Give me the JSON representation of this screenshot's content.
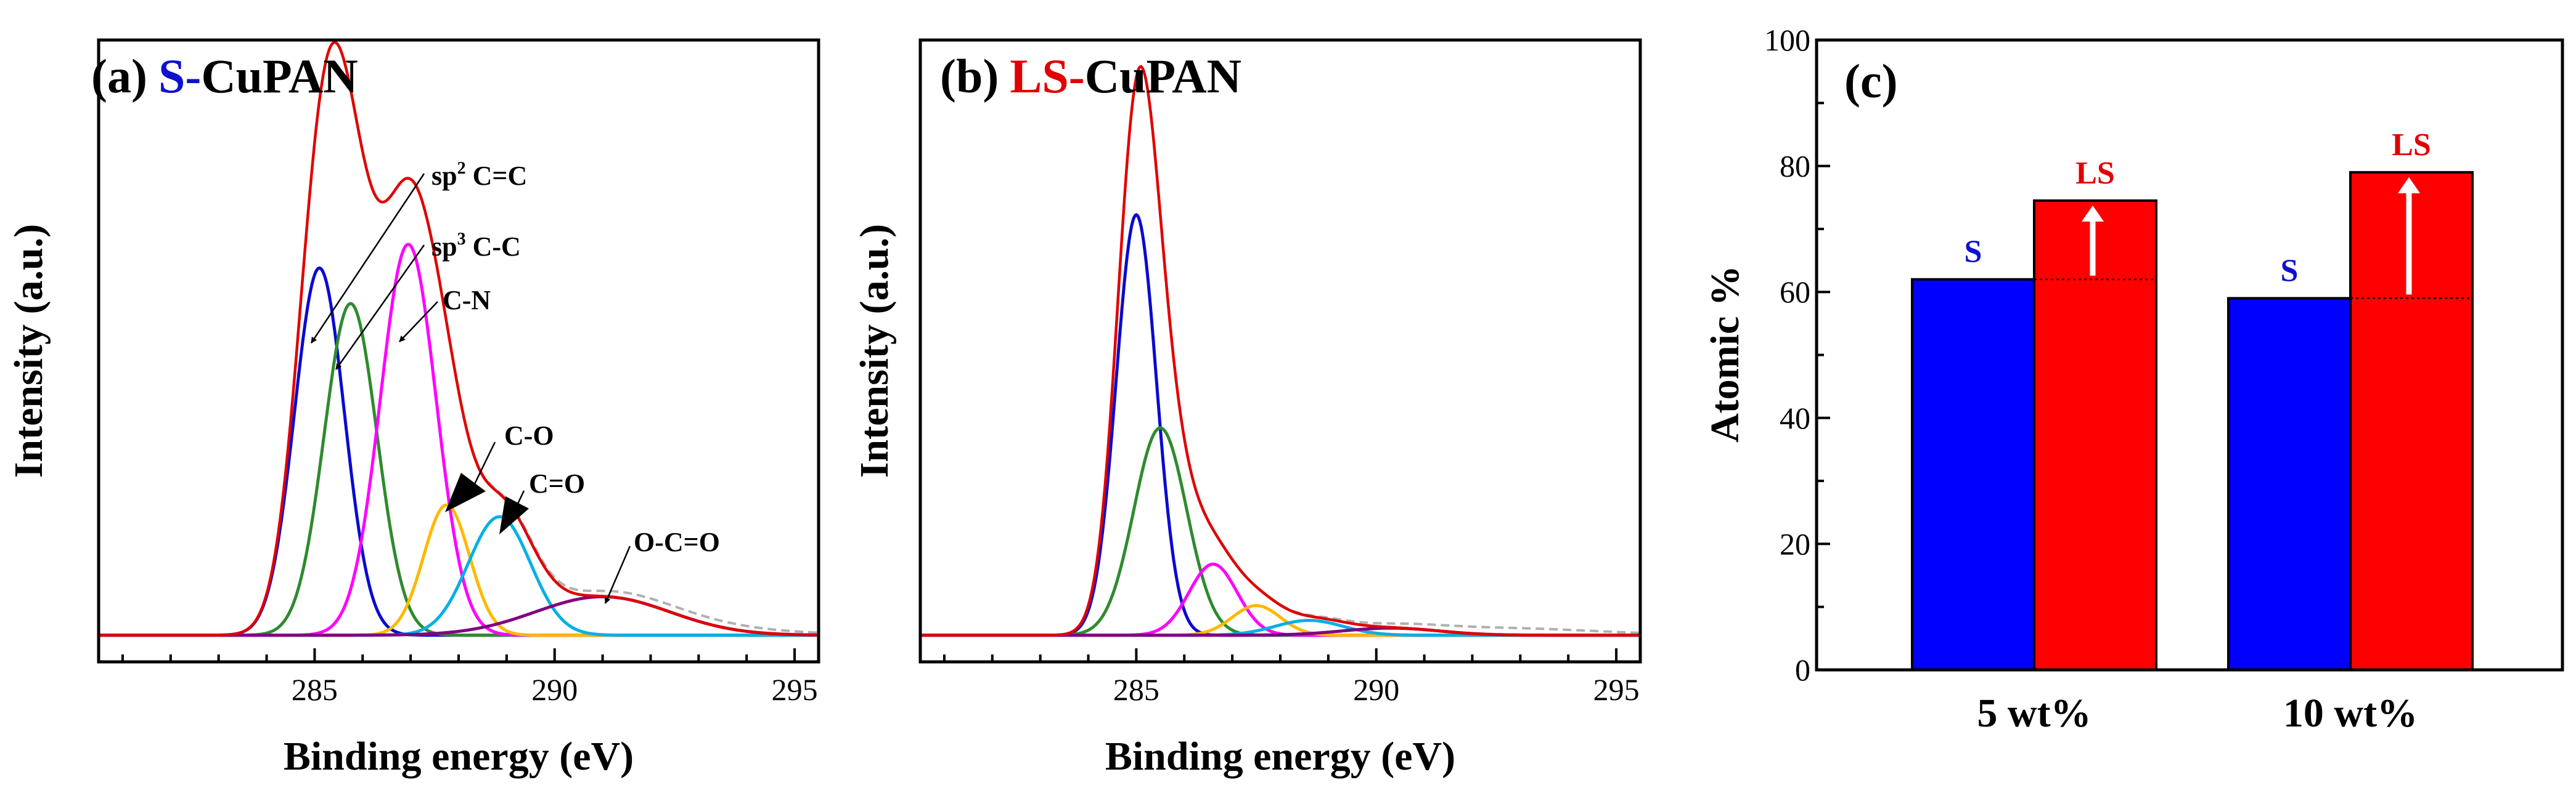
{
  "panels": {
    "a": {
      "letter": "(a)",
      "title_prefix": "S-",
      "title_suffix": "CuPAN",
      "prefix_color": "#1010d0",
      "ylabel": "Intensity (a.u.)",
      "xlabel": "Binding energy (eV)",
      "labels": {
        "sp2": {
          "base": "sp",
          "sup": "2",
          "rest": " C=C"
        },
        "sp3": {
          "base": "sp",
          "sup": "3",
          "rest": " C-C"
        },
        "cn": "C-N",
        "co": "C-O",
        "c2o": "C=O",
        "occo": "O-C=O"
      }
    },
    "b": {
      "letter": "(b)",
      "title_prefix": "LS-",
      "title_suffix": "CuPAN",
      "prefix_color": "#e00000",
      "ylabel": "Intensity (a.u.)",
      "xlabel": "Binding energy (eV)"
    },
    "c": {
      "letter": "(c)",
      "ylabel": "Atomic %"
    }
  },
  "chart_data": [
    {
      "type": "line",
      "panel": "a",
      "xlim": [
        280.5,
        295.5
      ],
      "ylim": [
        0,
        1.05
      ],
      "xticks": [
        285,
        290,
        295
      ],
      "tick_labels": [
        "285",
        "290",
        "295"
      ],
      "baseline": 0.045,
      "envelope_color": "#e00000",
      "raw_color": "#b0b0b0",
      "components": [
        {
          "center": 285.1,
          "amp": 0.62,
          "sigma": 0.52,
          "color": "#0a0ad0"
        },
        {
          "center": 285.75,
          "amp": 0.56,
          "sigma": 0.55,
          "color": "#2e8b2e"
        },
        {
          "center": 286.95,
          "amp": 0.66,
          "sigma": 0.58,
          "color": "#ff00ff"
        },
        {
          "center": 287.75,
          "amp": 0.22,
          "sigma": 0.48,
          "color": "#ffb800"
        },
        {
          "center": 288.85,
          "amp": 0.2,
          "sigma": 0.65,
          "color": "#00b0e6"
        },
        {
          "center": 291.0,
          "amp": 0.065,
          "sigma": 1.4,
          "color": "#800080"
        }
      ]
    },
    {
      "type": "line",
      "panel": "b",
      "xlim": [
        280.5,
        295.5
      ],
      "ylim": [
        0,
        1.05
      ],
      "xticks": [
        285,
        290,
        295
      ],
      "tick_labels": [
        "285",
        "290",
        "295"
      ],
      "baseline": 0.045,
      "envelope_color": "#e00000",
      "raw_color": "#b0b0b0",
      "components": [
        {
          "center": 285.0,
          "amp": 0.71,
          "sigma": 0.42,
          "color": "#0a0ad0"
        },
        {
          "center": 285.5,
          "amp": 0.35,
          "sigma": 0.55,
          "color": "#2e8b2e"
        },
        {
          "center": 286.6,
          "amp": 0.12,
          "sigma": 0.5,
          "color": "#ff00ff"
        },
        {
          "center": 287.5,
          "amp": 0.05,
          "sigma": 0.5,
          "color": "#ffb800"
        },
        {
          "center": 288.6,
          "amp": 0.025,
          "sigma": 0.7,
          "color": "#00b0e6"
        },
        {
          "center": 290.3,
          "amp": 0.012,
          "sigma": 1.0,
          "color": "#800080"
        }
      ]
    },
    {
      "type": "bar",
      "panel": "c",
      "categories": [
        "5 wt%",
        "10 wt%"
      ],
      "ylim": [
        0,
        100
      ],
      "yticks": [
        0,
        20,
        40,
        60,
        80,
        100
      ],
      "tick_labels": [
        "0",
        "20",
        "40",
        "60",
        "80",
        "100"
      ],
      "series": [
        {
          "name": "S",
          "values": [
            62,
            59
          ],
          "color": "#0000ff",
          "label_color": "#1010d0"
        },
        {
          "name": "LS",
          "values": [
            74.5,
            79
          ],
          "color": "#ff0000",
          "label_color": "#e00000"
        }
      ]
    }
  ]
}
